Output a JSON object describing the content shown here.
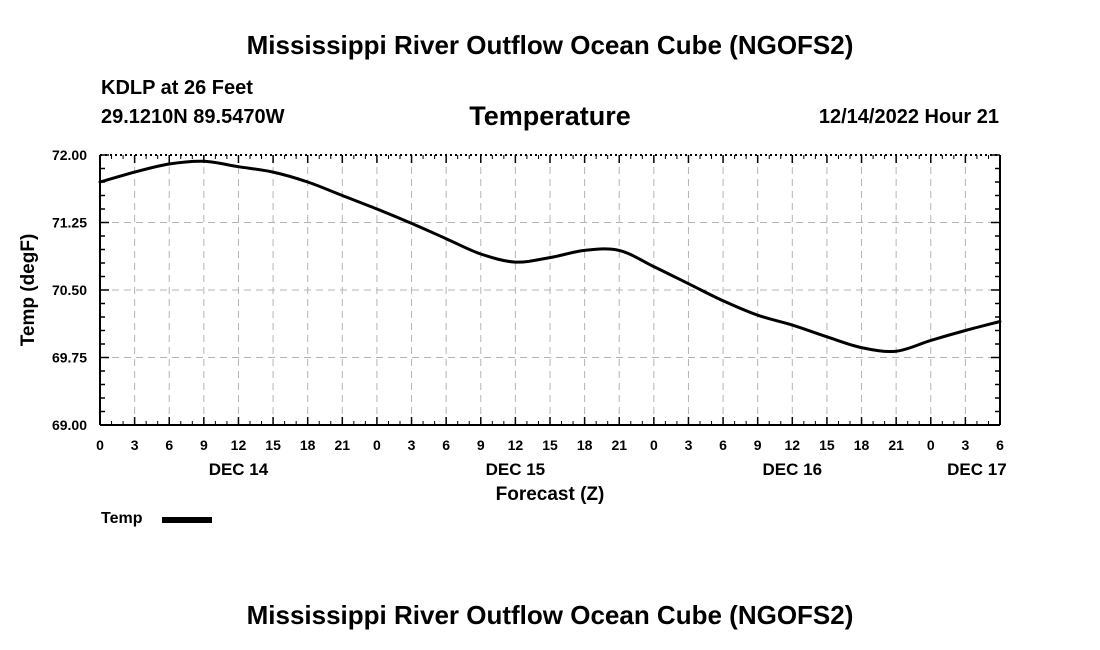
{
  "header": {
    "title_top": "Mississippi River Outflow Ocean Cube (NGOFS2)",
    "station": "KDLP at 26 Feet",
    "coords": "29.1210N  89.5470W",
    "plot_title": "Temperature",
    "datetime": "12/14/2022 Hour 21",
    "title_bottom": "Mississippi River Outflow Ocean Cube (NGOFS2)"
  },
  "legend": {
    "label": "Temp",
    "color": "#000000"
  },
  "chart_data": {
    "type": "line",
    "title": "Temperature",
    "xlabel": "Forecast (Z)",
    "ylabel": "Temp (degF)",
    "ylim": [
      69.0,
      72.0
    ],
    "xlim": [
      0,
      78
    ],
    "y_ticks": [
      "69.00",
      "69.75",
      "70.50",
      "71.25",
      "72.00"
    ],
    "y_tick_values": [
      69.0,
      69.75,
      70.5,
      71.25,
      72.0
    ],
    "x_ticks": [
      0,
      3,
      6,
      9,
      12,
      15,
      18,
      21,
      24,
      27,
      30,
      33,
      36,
      39,
      42,
      45,
      48,
      51,
      54,
      57,
      60,
      63,
      66,
      69,
      72,
      75,
      78
    ],
    "x_tick_labels": [
      "0",
      "3",
      "6",
      "9",
      "12",
      "15",
      "18",
      "21",
      "0",
      "3",
      "6",
      "9",
      "12",
      "15",
      "18",
      "21",
      "0",
      "3",
      "6",
      "9",
      "12",
      "15",
      "18",
      "21",
      "0",
      "3",
      "6"
    ],
    "day_labels": [
      {
        "hour": 12,
        "label": "DEC 14"
      },
      {
        "hour": 36,
        "label": "DEC 15"
      },
      {
        "hour": 60,
        "label": "DEC 16"
      },
      {
        "hour": 76,
        "label": "DEC 17"
      }
    ],
    "grid": true,
    "series": [
      {
        "name": "Temp",
        "color": "#000000",
        "x": [
          0,
          3,
          6,
          9,
          12,
          15,
          18,
          21,
          24,
          27,
          30,
          33,
          36,
          39,
          42,
          45,
          48,
          51,
          54,
          57,
          60,
          63,
          66,
          69,
          72,
          75,
          78
        ],
        "values": [
          71.7,
          71.81,
          71.9,
          71.93,
          71.87,
          71.81,
          71.7,
          71.55,
          71.4,
          71.24,
          71.07,
          70.9,
          70.81,
          70.86,
          70.94,
          70.94,
          70.76,
          70.57,
          70.38,
          70.22,
          70.11,
          69.98,
          69.86,
          69.82,
          69.94,
          70.05,
          70.15
        ]
      }
    ]
  }
}
